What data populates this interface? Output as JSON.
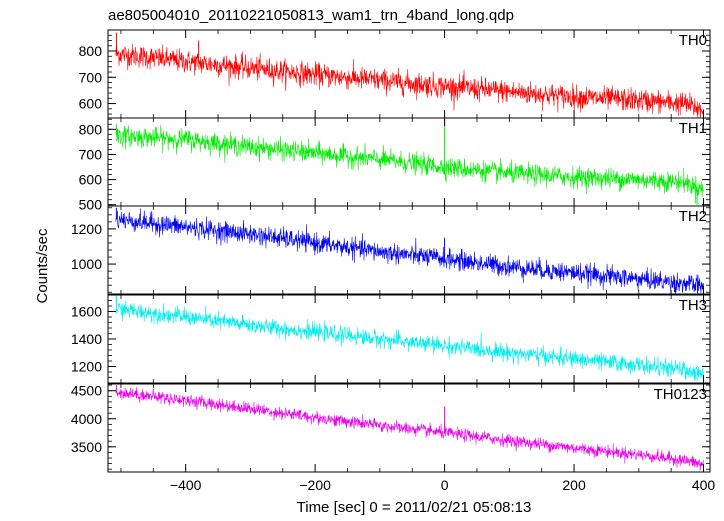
{
  "chart_data": {
    "type": "line",
    "title": "ae805004010_20110221050813_wam1_trn_4band_long.qdp",
    "xlabel": "Time [sec] 0 = 2011/02/21 05:08:13",
    "ylabel": "Counts/sec",
    "xlim": [
      -520,
      410
    ],
    "x_ticks": [
      -400,
      -200,
      0,
      200,
      400
    ],
    "x_tick_labels": [
      "−400",
      "−200",
      "0",
      "200",
      "400"
    ],
    "x_range_data": [
      -508,
      400
    ],
    "grid": false,
    "panels": [
      {
        "name": "TH0",
        "color": "#ff0000",
        "ylim": [
          545,
          880
        ],
        "y_ticks": [
          600,
          700,
          800
        ],
        "y_tick_labels": [
          "600",
          "700",
          "800"
        ],
        "trend_x": [
          -508,
          -400,
          -300,
          -200,
          -100,
          0,
          100,
          200,
          300,
          370,
          400
        ],
        "trend_y": [
          790,
          760,
          735,
          710,
          688,
          665,
          645,
          625,
          612,
          600,
          575
        ],
        "noise_sd": 22,
        "spikes": [
          {
            "x": -507,
            "y": 870
          },
          {
            "x": -380,
            "y": 840
          },
          {
            "x": 395,
            "y": 548
          }
        ]
      },
      {
        "name": "TH1",
        "color": "#00ee00",
        "ylim": [
          495,
          845
        ],
        "y_ticks": [
          500,
          600,
          700,
          800
        ],
        "y_tick_labels": [
          "500",
          "600",
          "700",
          "800"
        ],
        "trend_x": [
          -508,
          -400,
          -300,
          -200,
          -100,
          0,
          100,
          200,
          300,
          370,
          400
        ],
        "trend_y": [
          775,
          760,
          730,
          705,
          680,
          650,
          625,
          610,
          600,
          590,
          560
        ],
        "noise_sd": 20,
        "spikes": [
          {
            "x": 0,
            "y": 840
          },
          {
            "x": -507,
            "y": 820
          },
          {
            "x": 390,
            "y": 500
          }
        ]
      },
      {
        "name": "TH2",
        "color": "#0000ee",
        "ylim": [
          830,
          1330
        ],
        "y_ticks": [
          1000,
          1200
        ],
        "y_tick_labels": [
          "1000",
          "1200"
        ],
        "trend_x": [
          -508,
          -400,
          -300,
          -200,
          -100,
          0,
          100,
          200,
          300,
          370,
          400
        ],
        "trend_y": [
          1255,
          1210,
          1170,
          1120,
          1070,
          1030,
          985,
          950,
          915,
          890,
          870
        ],
        "noise_sd": 28,
        "spikes": [
          {
            "x": 0,
            "y": 1150
          },
          {
            "x": -507,
            "y": 1320
          },
          {
            "x": 355,
            "y": 840
          }
        ]
      },
      {
        "name": "TH3",
        "color": "#00eeee",
        "ylim": [
          1080,
          1720
        ],
        "y_ticks": [
          1200,
          1400,
          1600
        ],
        "y_tick_labels": [
          "1200",
          "1400",
          "1600"
        ],
        "trend_x": [
          -508,
          -400,
          -300,
          -200,
          -100,
          0,
          100,
          200,
          300,
          370,
          400
        ],
        "trend_y": [
          1620,
          1560,
          1500,
          1450,
          1400,
          1350,
          1300,
          1255,
          1210,
          1175,
          1140
        ],
        "noise_sd": 30,
        "spikes": [
          {
            "x": -507,
            "y": 1715
          },
          {
            "x": 390,
            "y": 1100
          }
        ]
      },
      {
        "name": "TH0123",
        "color": "#ee00ee",
        "ylim": [
          3050,
          4620
        ],
        "y_ticks": [
          3500,
          4000,
          4500
        ],
        "y_tick_labels": [
          "3500",
          "4000",
          "4500"
        ],
        "trend_x": [
          -508,
          -400,
          -300,
          -200,
          -100,
          0,
          100,
          200,
          300,
          370,
          400
        ],
        "trend_y": [
          4480,
          4330,
          4180,
          4020,
          3880,
          3750,
          3610,
          3480,
          3360,
          3260,
          3180
        ],
        "noise_sd": 55,
        "spikes": [
          {
            "x": 0,
            "y": 4220
          },
          {
            "x": -507,
            "y": 4600
          },
          {
            "x": 395,
            "y": 3080
          }
        ]
      }
    ]
  }
}
